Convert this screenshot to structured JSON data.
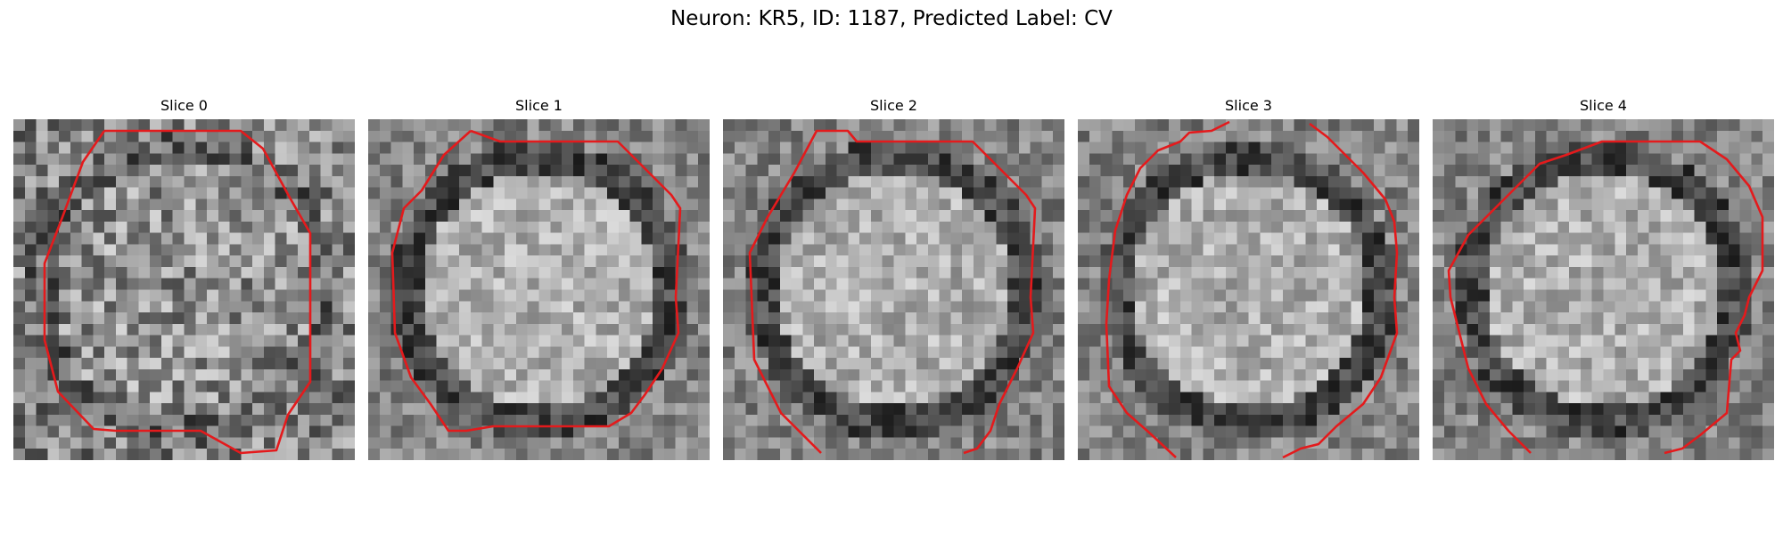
{
  "figure": {
    "title": "Neuron: KR5, ID: 1187, Predicted Label: CV",
    "contour_color": "#e41a1c"
  },
  "panels": [
    {
      "label": "Slice 0"
    },
    {
      "label": "Slice 1"
    },
    {
      "label": "Slice 2"
    },
    {
      "label": "Slice 3"
    },
    {
      "label": "Slice 4"
    }
  ]
}
